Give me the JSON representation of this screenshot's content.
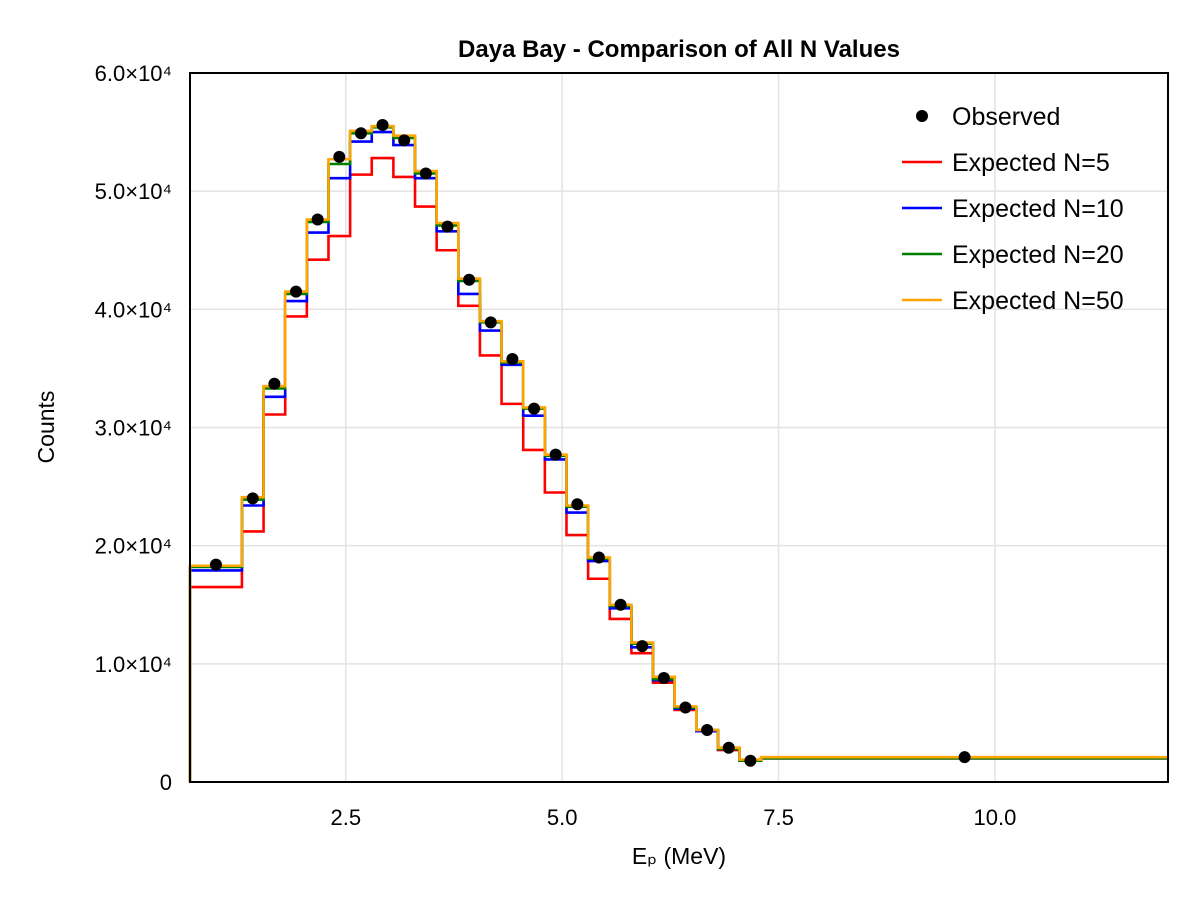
{
  "chart_data": {
    "type": "line",
    "title": "Daya Bay - Comparison of All N Values",
    "xlabel": "Eₚ (MeV)",
    "ylabel": "Counts",
    "xlim": [
      0.7,
      12.0
    ],
    "ylim": [
      0,
      60000
    ],
    "x_ticks": [
      2.5,
      5.0,
      7.5,
      10.0
    ],
    "x_tick_labels": [
      "2.5",
      "5.0",
      "7.5",
      "10.0"
    ],
    "y_ticks": [
      0,
      10000,
      20000,
      30000,
      40000,
      50000,
      60000
    ],
    "y_tick_labels": [
      "0",
      "1.0×10⁴",
      "2.0×10⁴",
      "3.0×10⁴",
      "4.0×10⁴",
      "5.0×10⁴",
      "6.0×10⁴"
    ],
    "grid": true,
    "legend_position": "top-right",
    "bin_edges": [
      0.7,
      1.3,
      1.55,
      1.8,
      2.05,
      2.3,
      2.55,
      2.8,
      3.05,
      3.3,
      3.55,
      3.8,
      4.05,
      4.3,
      4.55,
      4.8,
      5.05,
      5.3,
      5.55,
      5.8,
      6.05,
      6.3,
      6.55,
      6.8,
      7.05,
      7.3,
      12.0
    ],
    "observed": {
      "name": "Observed",
      "color": "#000000",
      "x": [
        1.0,
        1.425,
        1.675,
        1.925,
        2.175,
        2.425,
        2.675,
        2.925,
        3.175,
        3.425,
        3.675,
        3.925,
        4.175,
        4.425,
        4.675,
        4.925,
        5.175,
        5.425,
        5.675,
        5.925,
        6.175,
        6.425,
        6.675,
        6.925,
        7.175,
        9.65
      ],
      "y": [
        18400,
        24000,
        33700,
        41500,
        47600,
        52900,
        54900,
        55600,
        54300,
        51500,
        47000,
        42500,
        38900,
        35800,
        31600,
        27700,
        23500,
        19000,
        15000,
        11500,
        8800,
        6300,
        4400,
        2900,
        1800,
        2100
      ]
    },
    "series": [
      {
        "name": "Expected N=5",
        "color": "#ff0000",
        "values": [
          16500,
          21200,
          31100,
          39400,
          44200,
          46200,
          51400,
          52800,
          51200,
          48700,
          45000,
          40300,
          36100,
          32000,
          28100,
          24500,
          20900,
          17200,
          13800,
          10900,
          8400,
          6100,
          4300,
          2700,
          1800,
          2000
        ]
      },
      {
        "name": "Expected N=10",
        "color": "#0000ff",
        "values": [
          17900,
          23400,
          32600,
          40700,
          46500,
          51100,
          54200,
          55000,
          53900,
          51100,
          46600,
          41300,
          38200,
          35300,
          31000,
          27300,
          22800,
          18700,
          14700,
          11400,
          8600,
          6200,
          4300,
          2800,
          1800,
          2000
        ]
      },
      {
        "name": "Expected N=20",
        "color": "#008000",
        "values": [
          18200,
          23900,
          33300,
          41300,
          47400,
          52300,
          54900,
          55400,
          54500,
          51500,
          47100,
          42400,
          38900,
          35500,
          31600,
          27600,
          23300,
          18900,
          14900,
          11700,
          8700,
          6300,
          4400,
          2800,
          1800,
          2000
        ]
      },
      {
        "name": "Expected N=50",
        "color": "#ffa500",
        "values": [
          18300,
          24100,
          33500,
          41500,
          47600,
          52700,
          55100,
          55500,
          54700,
          51700,
          47300,
          42600,
          39000,
          35600,
          31700,
          27700,
          23400,
          19000,
          15000,
          11800,
          8900,
          6400,
          4400,
          2900,
          1900,
          2100
        ]
      }
    ]
  }
}
